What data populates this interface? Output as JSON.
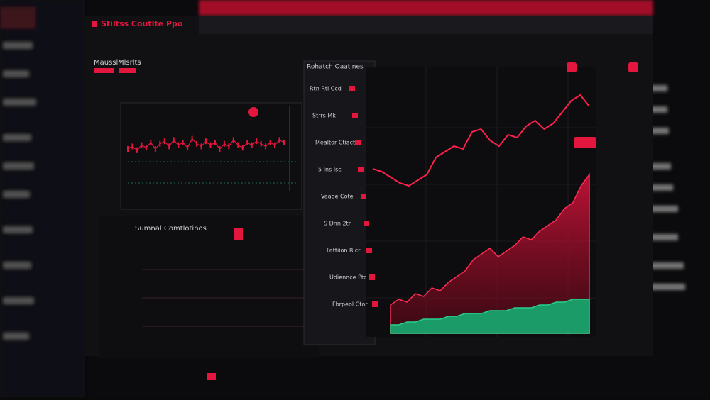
{
  "header": {
    "title": "Stiltss Coutlte Ppo",
    "nav": [
      "Mausslr",
      "Mlsrlts"
    ]
  },
  "top_chart": {
    "values": [
      50,
      52,
      49,
      53,
      51,
      55,
      50,
      54,
      56,
      52,
      57,
      53,
      55,
      51,
      58,
      54,
      52,
      56,
      53,
      55,
      50,
      54,
      52,
      57,
      53,
      51,
      55,
      53,
      56,
      54,
      52,
      55,
      53,
      57,
      55
    ]
  },
  "bottom_panel": {
    "title": "Sumnal Comtlotinos"
  },
  "order_panel": {
    "title": "Rohatch Oaatines",
    "rows": [
      "Rtn Rtl Ccd",
      "Strrs Mk",
      "Mealtor Ctiacto",
      "5 Ins Isc",
      "Vaaoe Cote",
      "S Dnn 2tr",
      "Fattiion Ricr",
      "Udiennce Ptc",
      "Fbrpeol Ctor"
    ]
  },
  "main_chart": {
    "line": [
      58,
      57,
      55,
      53,
      52,
      54,
      56,
      62,
      64,
      66,
      65,
      71,
      72,
      68,
      66,
      70,
      69,
      73,
      75,
      72,
      74,
      78,
      82,
      84,
      80
    ],
    "area": [
      10,
      12,
      11,
      14,
      13,
      16,
      15,
      18,
      20,
      22,
      26,
      28,
      30,
      27,
      29,
      31,
      34,
      33,
      36,
      38,
      40,
      44,
      46,
      52,
      56
    ],
    "base": [
      3,
      3,
      4,
      4,
      5,
      5,
      5,
      6,
      6,
      7,
      7,
      7,
      8,
      8,
      8,
      9,
      9,
      9,
      10,
      10,
      11,
      11,
      12,
      12,
      12
    ]
  }
}
